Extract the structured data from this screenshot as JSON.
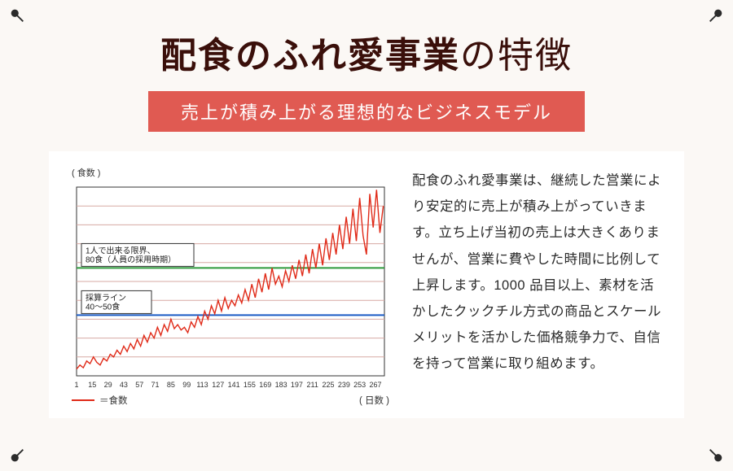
{
  "title_strong": "配食のふれ愛事業",
  "title_light": "の特徴",
  "subtitle": "売上が積み上がる理想的なビジネスモデル",
  "description": "配食のふれ愛事業は、継続した営業により安定的に売上が積み上がっていきます。立ち上げ当初の売上は大きくありませんが、営業に費やした時間に比例して上昇します。1000 品目以上、素材を活かしたクックチル方式の商品とスケールメリットを活かした価格競争力で、自信を持って営業に取り組めます。",
  "chart": {
    "type": "line",
    "ylabel": "( 食数 )",
    "xlabel": "( 日数 )",
    "legend_label": "＝食数",
    "background_color": "#ffffff",
    "grid_color": "#d7a9a3",
    "border_color": "#333333",
    "line_color": "#e02a18",
    "line_width": 1.4,
    "green_line_color": "#2e9a3b",
    "blue_line_color": "#1a5bc4",
    "ref_line_width": 2,
    "label_box_fill": "#ffffff",
    "label_box_stroke": "#333333",
    "label_box_fontsize": 10,
    "label1_text1": "1人で出来る限界、",
    "label1_text2": "80食（人員の採用時期）",
    "label2_text1": "採算ライン",
    "label2_text2": "40～50食",
    "label_fontsize": 11,
    "tick_fontsize": 9,
    "xlim": [
      1,
      275
    ],
    "ylim": [
      0,
      140
    ],
    "y_grid_step": 14,
    "y_grid_count": 10,
    "green_y": 80,
    "blue_y": 45,
    "x_ticks": [
      1,
      15,
      29,
      43,
      57,
      71,
      85,
      99,
      113,
      127,
      141,
      155,
      169,
      183,
      197,
      211,
      225,
      239,
      253,
      267
    ],
    "series_xy": [
      [
        1,
        5
      ],
      [
        4,
        8
      ],
      [
        7,
        6
      ],
      [
        10,
        11
      ],
      [
        13,
        9
      ],
      [
        16,
        14
      ],
      [
        19,
        10
      ],
      [
        22,
        8
      ],
      [
        25,
        13
      ],
      [
        28,
        11
      ],
      [
        31,
        16
      ],
      [
        34,
        14
      ],
      [
        37,
        19
      ],
      [
        40,
        16
      ],
      [
        43,
        22
      ],
      [
        46,
        18
      ],
      [
        49,
        24
      ],
      [
        52,
        20
      ],
      [
        55,
        27
      ],
      [
        58,
        22
      ],
      [
        61,
        30
      ],
      [
        64,
        25
      ],
      [
        67,
        32
      ],
      [
        70,
        28
      ],
      [
        73,
        36
      ],
      [
        76,
        30
      ],
      [
        79,
        38
      ],
      [
        82,
        33
      ],
      [
        85,
        42
      ],
      [
        88,
        35
      ],
      [
        91,
        38
      ],
      [
        94,
        34
      ],
      [
        97,
        36
      ],
      [
        100,
        32
      ],
      [
        103,
        40
      ],
      [
        106,
        36
      ],
      [
        109,
        44
      ],
      [
        112,
        38
      ],
      [
        115,
        48
      ],
      [
        118,
        42
      ],
      [
        121,
        52
      ],
      [
        124,
        46
      ],
      [
        127,
        56
      ],
      [
        130,
        48
      ],
      [
        133,
        58
      ],
      [
        136,
        50
      ],
      [
        139,
        56
      ],
      [
        142,
        52
      ],
      [
        145,
        60
      ],
      [
        148,
        54
      ],
      [
        151,
        64
      ],
      [
        154,
        56
      ],
      [
        157,
        68
      ],
      [
        160,
        58
      ],
      [
        163,
        72
      ],
      [
        166,
        62
      ],
      [
        169,
        76
      ],
      [
        172,
        64
      ],
      [
        175,
        80
      ],
      [
        178,
        68
      ],
      [
        181,
        74
      ],
      [
        184,
        66
      ],
      [
        187,
        78
      ],
      [
        190,
        70
      ],
      [
        193,
        82
      ],
      [
        196,
        72
      ],
      [
        199,
        86
      ],
      [
        202,
        74
      ],
      [
        205,
        90
      ],
      [
        208,
        76
      ],
      [
        211,
        94
      ],
      [
        214,
        80
      ],
      [
        217,
        98
      ],
      [
        220,
        82
      ],
      [
        223,
        102
      ],
      [
        226,
        86
      ],
      [
        229,
        106
      ],
      [
        232,
        90
      ],
      [
        235,
        112
      ],
      [
        238,
        94
      ],
      [
        241,
        118
      ],
      [
        244,
        98
      ],
      [
        247,
        124
      ],
      [
        250,
        100
      ],
      [
        253,
        132
      ],
      [
        256,
        104
      ],
      [
        259,
        90
      ],
      [
        262,
        135
      ],
      [
        265,
        110
      ],
      [
        268,
        138
      ],
      [
        271,
        106
      ],
      [
        274,
        126
      ]
    ]
  }
}
